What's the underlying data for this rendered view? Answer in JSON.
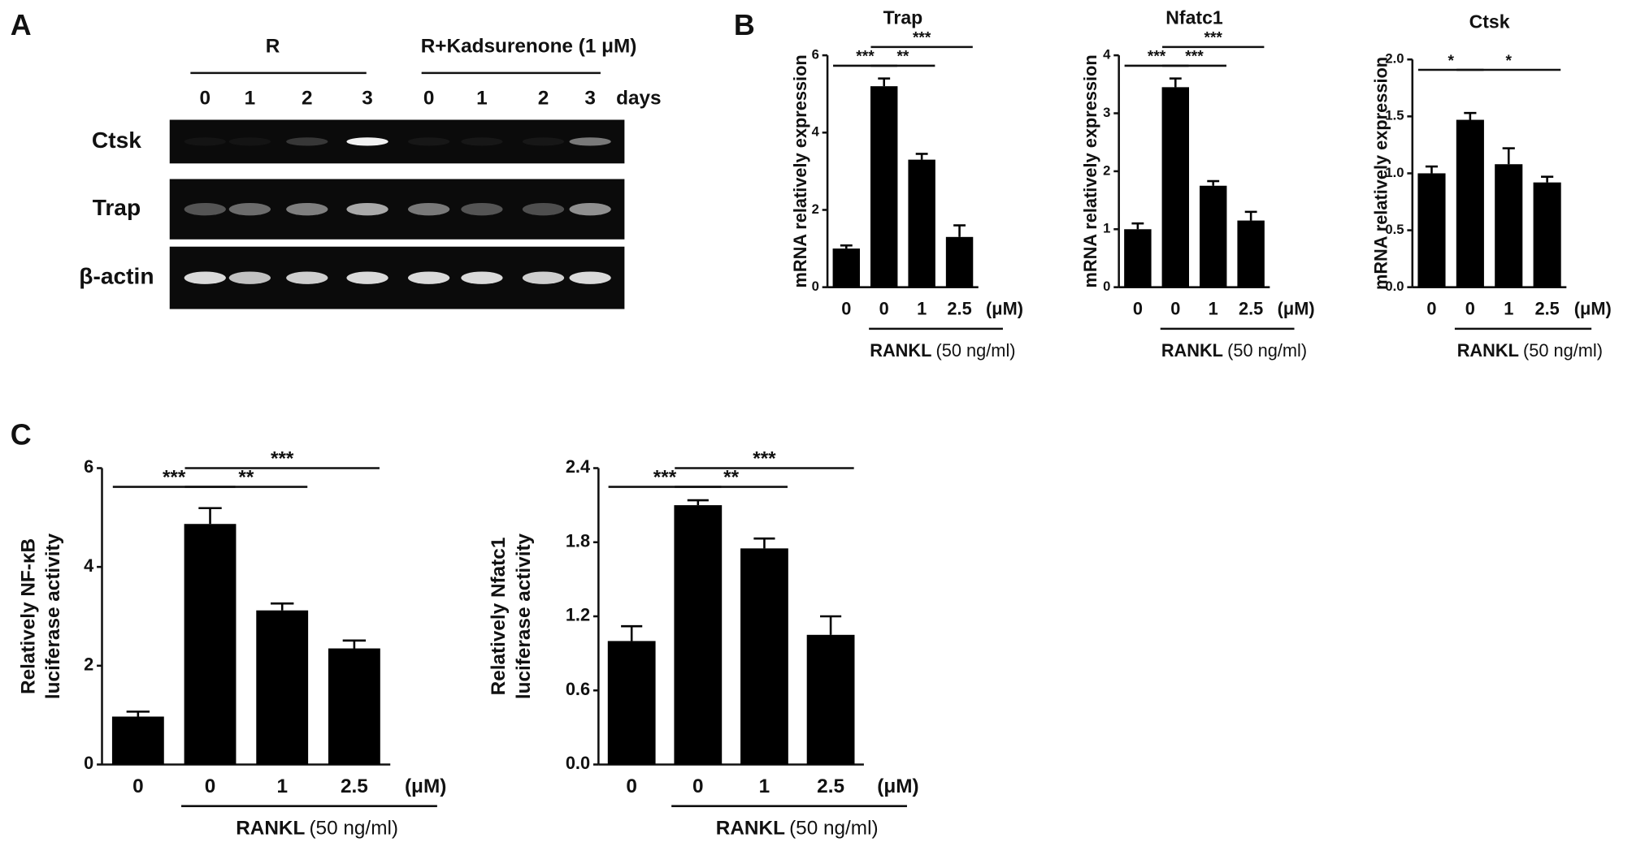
{
  "panel_labels": [
    "A",
    "B",
    "C"
  ],
  "gel": {
    "groups": [
      "R",
      "R+Kadsurenone (1 μM)"
    ],
    "lanes": [
      "0",
      "1",
      "2",
      "3",
      "0",
      "1",
      "2",
      "3"
    ],
    "lane_unit": "days",
    "rows": [
      "Ctsk",
      "Trap",
      "β-actin"
    ]
  },
  "chart_data": [
    {
      "type": "bar",
      "title": "Trap",
      "y_label": [
        "mRNA relatively expression"
      ],
      "categories": [
        "0",
        "0",
        "1",
        "2.5"
      ],
      "x_unit": "(μM)",
      "treatment": "RANKL",
      "treatment_dose": "(50 ng/ml)",
      "values": [
        1.0,
        5.2,
        3.3,
        1.3
      ],
      "errors": [
        0.08,
        0.2,
        0.15,
        0.3
      ],
      "color": "#000000",
      "ylim": [
        0,
        6
      ],
      "yticks": [
        0,
        2,
        4,
        6
      ],
      "annotations": [
        {
          "text": "***",
          "from": 0,
          "to": 1
        },
        {
          "text": "**",
          "from": 1,
          "to": 2
        },
        {
          "text": "***",
          "from": 1,
          "to": 3
        }
      ]
    },
    {
      "type": "bar",
      "title": "Nfatc1",
      "y_label": [
        "mRNA relatively expression"
      ],
      "categories": [
        "0",
        "0",
        "1",
        "2.5"
      ],
      "x_unit": "(μM)",
      "treatment": "RANKL",
      "treatment_dose": "(50 ng/ml)",
      "values": [
        1.0,
        3.45,
        1.75,
        1.15
      ],
      "errors": [
        0.1,
        0.15,
        0.08,
        0.15
      ],
      "color": "#000000",
      "ylim": [
        0,
        4
      ],
      "yticks": [
        0,
        1,
        2,
        3,
        4
      ],
      "annotations": [
        {
          "text": "***",
          "from": 0,
          "to": 1
        },
        {
          "text": "***",
          "from": 1,
          "to": 2
        },
        {
          "text": "***",
          "from": 1,
          "to": 3
        }
      ]
    },
    {
      "type": "bar",
      "title": "Ctsk",
      "y_label": [
        "mRNA relatively expression"
      ],
      "categories": [
        "0",
        "0",
        "1",
        "2.5"
      ],
      "x_unit": "(μM)",
      "treatment": "RANKL",
      "treatment_dose": "(50 ng/ml)",
      "values": [
        1.0,
        1.47,
        1.08,
        0.92
      ],
      "errors": [
        0.06,
        0.06,
        0.14,
        0.05
      ],
      "color": "#000000",
      "ylim": [
        0,
        2
      ],
      "yticks": [
        {
          "value": 0,
          "label": "0.0"
        },
        {
          "value": 0.5,
          "label": "0.5"
        },
        {
          "value": 1,
          "label": "1.0"
        },
        {
          "value": 1.5,
          "label": "1.5"
        },
        {
          "value": 2,
          "label": "2.0"
        }
      ],
      "annotations": [
        {
          "text": "*",
          "from": 0,
          "to": 1
        },
        {
          "text": "*",
          "from": 1,
          "to": 3
        }
      ]
    },
    {
      "type": "bar",
      "y_label": [
        "Relatively NF-κB",
        "luciferase activity"
      ],
      "categories": [
        "0",
        "0",
        "1",
        "2.5"
      ],
      "x_unit": "(μM)",
      "treatment": "RANKL",
      "treatment_dose": "(50 ng/ml)",
      "values": [
        0.97,
        4.87,
        3.12,
        2.35
      ],
      "errors": [
        0.1,
        0.32,
        0.14,
        0.16
      ],
      "color": "#000000",
      "ylim": [
        0,
        6
      ],
      "yticks": [
        0,
        2,
        4,
        6
      ],
      "annotations": [
        {
          "text": "***",
          "from": 0,
          "to": 1
        },
        {
          "text": "**",
          "from": 1,
          "to": 2
        },
        {
          "text": "***",
          "from": 1,
          "to": 3
        }
      ]
    },
    {
      "type": "bar",
      "y_label": [
        "Relatively Nfatc1",
        "luciferase activity"
      ],
      "categories": [
        "0",
        "0",
        "1",
        "2.5"
      ],
      "x_unit": "(μM)",
      "treatment": "RANKL",
      "treatment_dose": "(50 ng/ml)",
      "values": [
        1.0,
        2.1,
        1.75,
        1.05
      ],
      "errors": [
        0.12,
        0.04,
        0.08,
        0.15
      ],
      "color": "#000000",
      "ylim": [
        0,
        2.4
      ],
      "yticks": [
        {
          "value": 0,
          "label": "0.0"
        },
        0.6,
        1.2,
        1.8,
        2.4
      ],
      "annotations": [
        {
          "text": "***",
          "from": 0,
          "to": 1
        },
        {
          "text": "**",
          "from": 1,
          "to": 2
        },
        {
          "text": "***",
          "from": 1,
          "to": 3
        }
      ]
    }
  ]
}
